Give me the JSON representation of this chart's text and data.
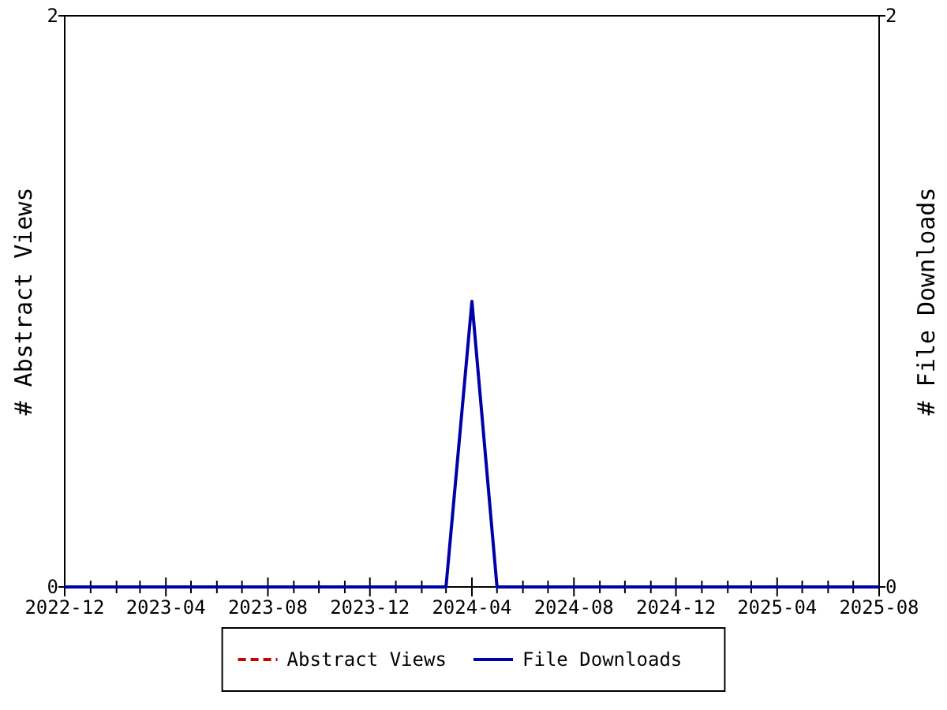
{
  "chart_data": {
    "type": "line",
    "ylabel": "# Abstract Views",
    "y2label": "# File Downloads",
    "x": [
      "2022-12",
      "2023-01",
      "2023-02",
      "2023-03",
      "2023-04",
      "2023-05",
      "2023-06",
      "2023-07",
      "2023-08",
      "2023-09",
      "2023-10",
      "2023-11",
      "2023-12",
      "2024-01",
      "2024-02",
      "2024-03",
      "2024-04",
      "2024-05",
      "2024-06",
      "2024-07",
      "2024-08",
      "2024-09",
      "2024-10",
      "2024-11",
      "2024-12",
      "2025-01",
      "2025-02",
      "2025-03",
      "2025-04",
      "2025-05",
      "2025-06",
      "2025-07",
      "2025-08"
    ],
    "series": [
      {
        "name": "Abstract Views",
        "color": "#cc0000",
        "line_style": "dashed",
        "values": [
          null,
          null,
          null,
          null,
          null,
          null,
          null,
          null,
          null,
          null,
          null,
          null,
          null,
          null,
          null,
          null,
          null,
          null,
          null,
          null,
          null,
          null,
          null,
          null,
          null,
          null,
          null,
          null,
          null,
          null,
          null,
          null,
          null
        ]
      },
      {
        "name": "File Downloads",
        "color": "#0000aa",
        "line_style": "solid",
        "values": [
          0,
          0,
          0,
          0,
          0,
          0,
          0,
          0,
          0,
          0,
          0,
          0,
          0,
          0,
          0,
          0,
          1,
          0,
          0,
          0,
          0,
          0,
          0,
          0,
          0,
          0,
          0,
          0,
          0,
          0,
          0,
          0,
          0
        ]
      }
    ],
    "xlim": [
      "2022-12",
      "2025-08"
    ],
    "xticks": [
      "2022-12",
      {
        "value": "2023-01",
        "label": null
      },
      {
        "value": "2023-02",
        "label": null
      },
      {
        "value": "2023-03",
        "label": null
      },
      "2023-04",
      {
        "value": "2023-05",
        "label": null
      },
      {
        "value": "2023-06",
        "label": null
      },
      {
        "value": "2023-07",
        "label": null
      },
      "2023-08",
      {
        "value": "2023-09",
        "label": null
      },
      {
        "value": "2023-10",
        "label": null
      },
      {
        "value": "2023-11",
        "label": null
      },
      "2023-12",
      {
        "value": "2024-01",
        "label": null
      },
      {
        "value": "2024-02",
        "label": null
      },
      {
        "value": "2024-03",
        "label": null
      },
      "2024-04",
      {
        "value": "2024-05",
        "label": null
      },
      {
        "value": "2024-06",
        "label": null
      },
      {
        "value": "2024-07",
        "label": null
      },
      "2024-08",
      {
        "value": "2024-09",
        "label": null
      },
      {
        "value": "2024-10",
        "label": null
      },
      {
        "value": "2024-11",
        "label": null
      },
      "2024-12",
      {
        "value": "2025-01",
        "label": null
      },
      {
        "value": "2025-02",
        "label": null
      },
      {
        "value": "2025-03",
        "label": null
      },
      "2025-04",
      {
        "value": "2025-05",
        "label": null
      },
      {
        "value": "2025-06",
        "label": null
      },
      {
        "value": "2025-07",
        "label": null
      },
      "2025-08"
    ],
    "ylim": [
      0,
      2
    ],
    "yticks": [
      0,
      2
    ],
    "y2lim": [
      0,
      2
    ],
    "y2ticks": [
      0,
      2
    ],
    "grid": false,
    "legend": "bottom",
    "marker": "none"
  }
}
